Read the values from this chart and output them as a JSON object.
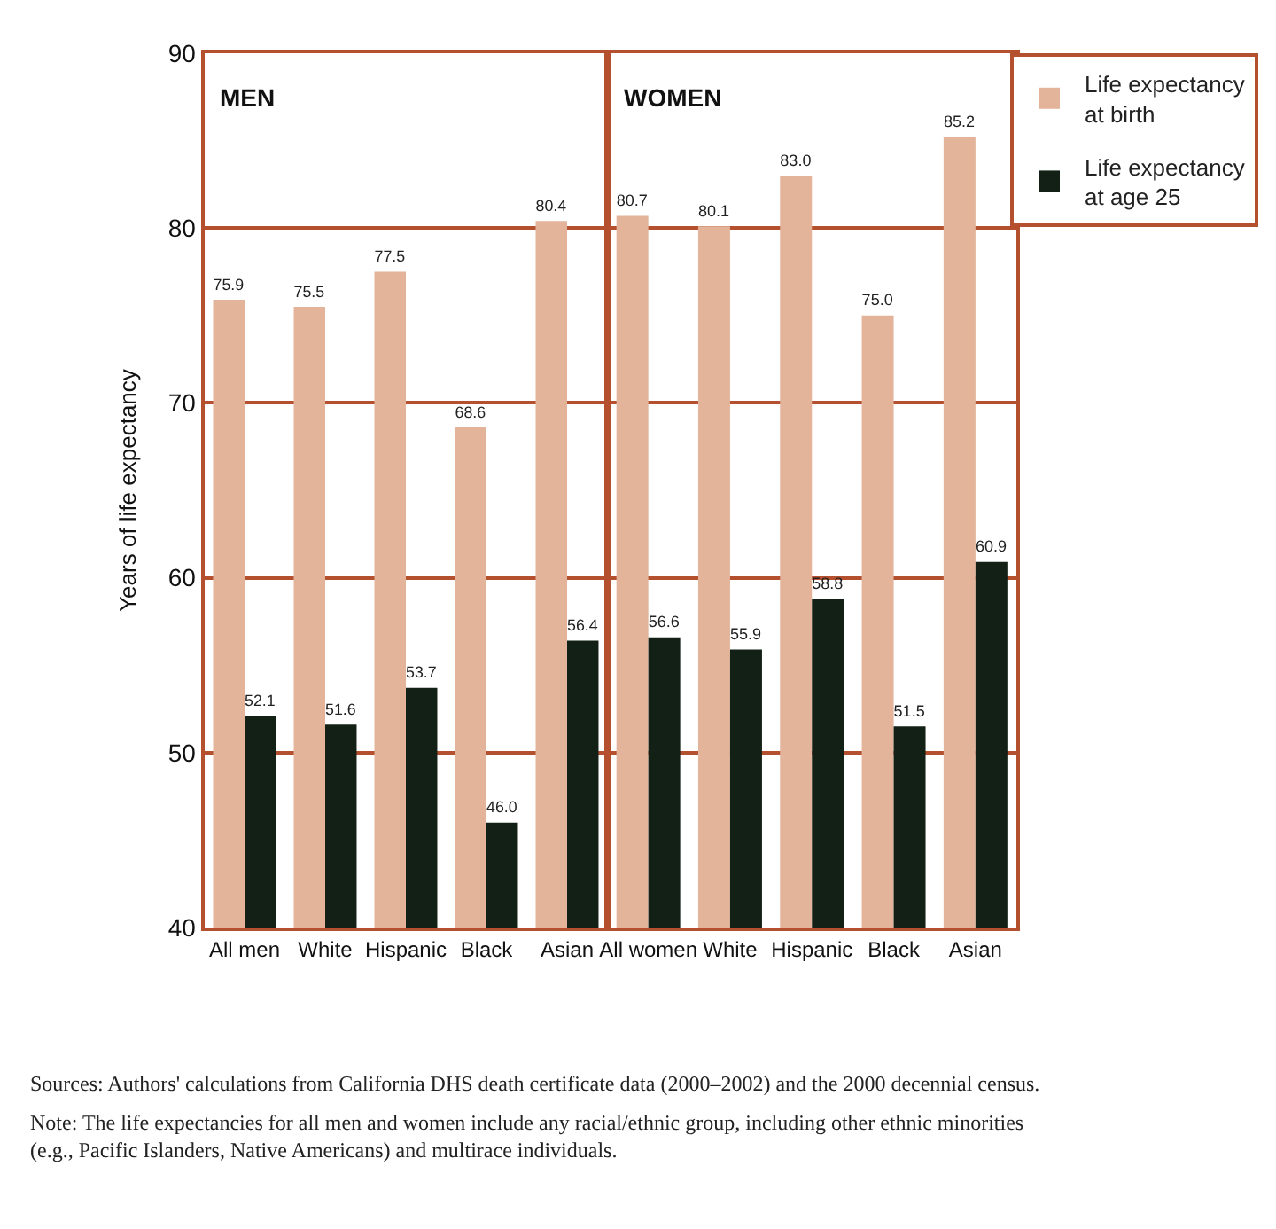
{
  "chart_data": [
    {
      "type": "bar",
      "categories": [
        "All men",
        "White",
        "Hispanic",
        "Black",
        "Asian"
      ],
      "ylabel": "Years of life expectancy",
      "ylim": [
        40,
        90
      ],
      "yticks": [
        40,
        50,
        60,
        70,
        80,
        90
      ],
      "grid": "y",
      "legend": "top right",
      "series": [
        {
          "name": "Life expectancy at birth",
          "color": "#e3b49a",
          "values": [
            75.9,
            75.5,
            77.5,
            68.6,
            80.4
          ],
          "value_labels": [
            "75.9",
            "75.5",
            "77.5",
            "68.6",
            "80.4"
          ]
        },
        {
          "name": "Life expectancy at age 25",
          "color": "#132016",
          "values": [
            52.1,
            51.6,
            53.7,
            46.0,
            56.4
          ],
          "value_labels": [
            "52.1",
            "51.6",
            "53.7",
            "46.0",
            "56.4"
          ]
        }
      ],
      "annotations": [
        "MEN"
      ]
    },
    {
      "type": "bar",
      "categories": [
        "All women",
        "White",
        "Hispanic",
        "Black",
        "Asian"
      ],
      "ylim": [
        40,
        90
      ],
      "yticks": [
        40,
        50,
        60,
        70,
        80,
        90
      ],
      "grid": "y",
      "tick_labels": "x",
      "series": [
        {
          "color": "#e3b49a",
          "values": [
            80.7,
            80.1,
            83.0,
            75.0,
            85.2
          ],
          "value_labels": [
            "80.7",
            "80.1",
            "83.0",
            "75.0",
            "85.2"
          ]
        },
        {
          "color": "#132016",
          "values": [
            56.6,
            55.9,
            58.8,
            51.5,
            60.9
          ],
          "value_labels": [
            "56.6",
            "55.9",
            "58.8",
            "51.5",
            "60.9"
          ]
        }
      ],
      "annotations": [
        "WOMEN",
        "Sources: Authors' calculations from California DHS death certificate data (2000–2002) and the 2000 decennial census.",
        "Note: The life expectancies for all men and women include any racial/ethnic group, including other ethnic minorities (e.g., Pacific Islanders, Native Americans) and multirace individuals."
      ]
    }
  ]
}
